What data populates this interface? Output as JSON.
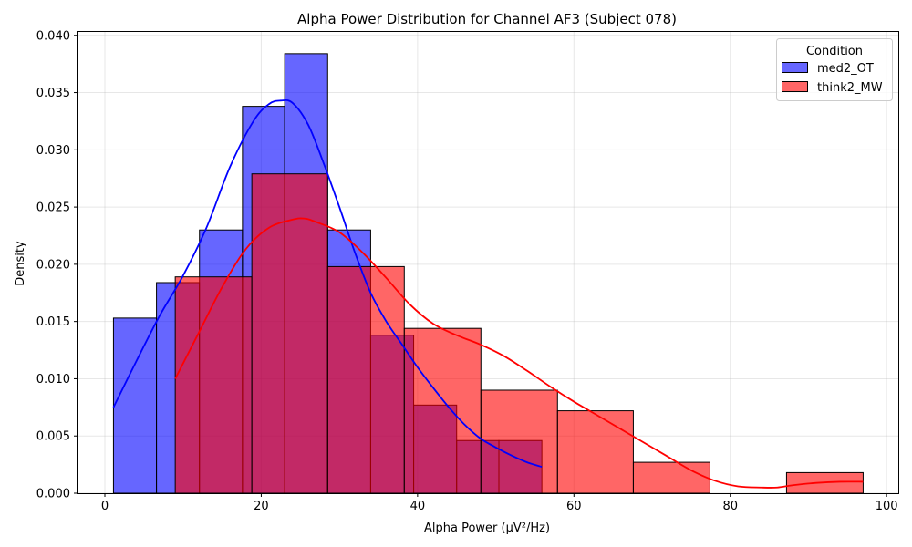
{
  "chart_data": {
    "type": "histogram",
    "title": "Alpha Power Distribution for Channel AF3 (Subject 078)",
    "xlabel": "Alpha Power (µV²/Hz)",
    "ylabel": "Density",
    "xlim": [
      -3.5,
      101.5
    ],
    "ylim": [
      0,
      0.0403
    ],
    "xticks": [
      0,
      20,
      40,
      60,
      80,
      100
    ],
    "yticks": [
      0.0,
      0.005,
      0.01,
      0.015,
      0.02,
      0.025,
      0.03,
      0.035,
      0.04
    ],
    "ytick_labels": [
      "0.000",
      "0.005",
      "0.010",
      "0.015",
      "0.020",
      "0.025",
      "0.030",
      "0.035",
      "0.040"
    ],
    "grid": true,
    "legend": {
      "title": "Condition",
      "placement": "top-right"
    },
    "series": [
      {
        "name": "med2_OT",
        "color": "#0000ff",
        "bins": [
          {
            "x0": 1.1,
            "x1": 6.6,
            "density": 0.0153
          },
          {
            "x0": 6.6,
            "x1": 12.1,
            "density": 0.0184
          },
          {
            "x0": 12.1,
            "x1": 17.6,
            "density": 0.023
          },
          {
            "x0": 17.6,
            "x1": 23.0,
            "density": 0.0338
          },
          {
            "x0": 23.0,
            "x1": 28.5,
            "density": 0.0384
          },
          {
            "x0": 28.5,
            "x1": 34.0,
            "density": 0.023
          },
          {
            "x0": 34.0,
            "x1": 39.5,
            "density": 0.0138
          },
          {
            "x0": 39.5,
            "x1": 45.0,
            "density": 0.0077
          },
          {
            "x0": 45.0,
            "x1": 50.4,
            "density": 0.0046
          },
          {
            "x0": 50.4,
            "x1": 55.9,
            "density": 0.0046
          }
        ],
        "kde": {
          "x": [
            1.1,
            4,
            7,
            10,
            13,
            16,
            19,
            21,
            22.5,
            24,
            26,
            28,
            30,
            32,
            34,
            36,
            38,
            40,
            42,
            44,
            46,
            48,
            50,
            52,
            54,
            55.9
          ],
          "y": [
            0.0075,
            0.0115,
            0.0155,
            0.019,
            0.0232,
            0.0285,
            0.0325,
            0.034,
            0.0343,
            0.0341,
            0.0322,
            0.0288,
            0.025,
            0.021,
            0.0175,
            0.015,
            0.013,
            0.011,
            0.0092,
            0.0075,
            0.006,
            0.0048,
            0.004,
            0.0033,
            0.0027,
            0.0023
          ]
        }
      },
      {
        "name": "think2_MW",
        "color": "#ff0000",
        "bins": [
          {
            "x0": 9.0,
            "x1": 18.8,
            "density": 0.0189
          },
          {
            "x0": 18.8,
            "x1": 28.5,
            "density": 0.0279
          },
          {
            "x0": 28.5,
            "x1": 38.3,
            "density": 0.0198
          },
          {
            "x0": 38.3,
            "x1": 48.1,
            "density": 0.0144
          },
          {
            "x0": 48.1,
            "x1": 57.9,
            "density": 0.009
          },
          {
            "x0": 57.9,
            "x1": 67.6,
            "density": 0.0072
          },
          {
            "x0": 67.6,
            "x1": 77.4,
            "density": 0.0027
          },
          {
            "x0": 77.4,
            "x1": 87.2,
            "density": 0.0
          },
          {
            "x0": 87.2,
            "x1": 97.0,
            "density": 0.0018
          }
        ],
        "kde": {
          "x": [
            9,
            12,
            15,
            18,
            21,
            24,
            25.5,
            27,
            30,
            33,
            36,
            39,
            42,
            45,
            48,
            51,
            54,
            57,
            60,
            63,
            66,
            69,
            72,
            75,
            78,
            81,
            84,
            86,
            88,
            91,
            94,
            97
          ],
          "y": [
            0.01,
            0.014,
            0.018,
            0.0213,
            0.0232,
            0.0239,
            0.024,
            0.0237,
            0.0228,
            0.021,
            0.0188,
            0.0165,
            0.0148,
            0.0138,
            0.013,
            0.012,
            0.0107,
            0.0093,
            0.008,
            0.0068,
            0.0056,
            0.0044,
            0.0032,
            0.002,
            0.0011,
            0.0006,
            0.0005,
            0.0005,
            0.0007,
            0.0009,
            0.001,
            0.001
          ]
        }
      }
    ]
  }
}
